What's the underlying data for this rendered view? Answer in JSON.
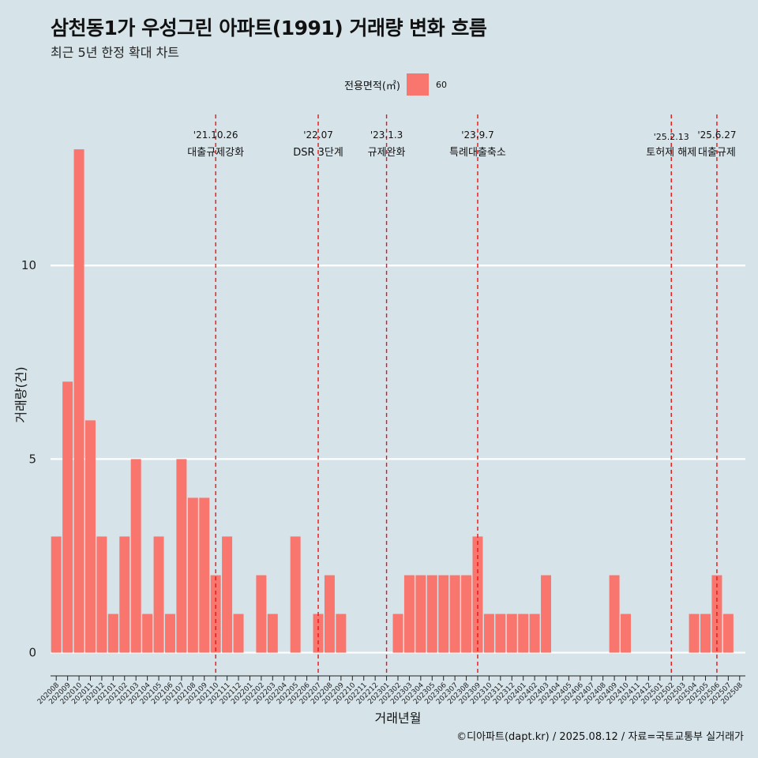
{
  "title": "삼천동1가 우성그린 아파트(1991) 거래량 변화 흐름",
  "subtitle": "최근 5년 한정 확대 차트",
  "caption": "©디아파트(dapt.kr) / 2025.08.12 / 자료=국토교통부 실거래가",
  "legend": {
    "title": "전용면적(㎡)",
    "label": "60",
    "color": "#f8766d"
  },
  "chart_data": {
    "type": "bar",
    "xlabel": "거래년월",
    "ylabel": "거래량(건)",
    "ylim": [
      -0.6,
      13.9
    ],
    "yticks": [
      0,
      5,
      10
    ],
    "grid": true,
    "legend_position": "top",
    "categories": [
      "202008",
      "202009",
      "202010",
      "202011",
      "202012",
      "202101",
      "202102",
      "202103",
      "202104",
      "202105",
      "202106",
      "202107",
      "202108",
      "202109",
      "202110",
      "202111",
      "202112",
      "202201",
      "202202",
      "202203",
      "202204",
      "202205",
      "202206",
      "202207",
      "202208",
      "202209",
      "202210",
      "202211",
      "202212",
      "202301",
      "202302",
      "202303",
      "202304",
      "202305",
      "202306",
      "202307",
      "202308",
      "202309",
      "202310",
      "202311",
      "202312",
      "202401",
      "202402",
      "202403",
      "202404",
      "202405",
      "202406",
      "202407",
      "202408",
      "202409",
      "202410",
      "202411",
      "202412",
      "202501",
      "202502",
      "202503",
      "202504",
      "202505",
      "202506",
      "202507",
      "202508"
    ],
    "series": [
      {
        "name": "60",
        "values": [
          3,
          7,
          13,
          6,
          3,
          1,
          3,
          5,
          1,
          3,
          1,
          5,
          4,
          4,
          2,
          3,
          1,
          0,
          2,
          1,
          0,
          3,
          0,
          1,
          2,
          1,
          0,
          0,
          0,
          0,
          1,
          2,
          2,
          2,
          2,
          2,
          2,
          3,
          1,
          1,
          1,
          1,
          1,
          2,
          0,
          0,
          0,
          0,
          0,
          2,
          1,
          0,
          0,
          0,
          0,
          0,
          1,
          1,
          2,
          1,
          0
        ]
      }
    ],
    "annotations": [
      {
        "category": "202110",
        "date": "'21.10.26",
        "label": "대출규제강화"
      },
      {
        "category": "202207",
        "date": "'22.07",
        "label": "DSR 3단계"
      },
      {
        "category": "202301",
        "date": "'23.1.3",
        "label": "규제완화"
      },
      {
        "category": "202309",
        "date": "'23.9.7",
        "label": "특례대출축소"
      },
      {
        "category": "202502",
        "date": "'25.2.13",
        "label": "토허제 해제"
      },
      {
        "category": "202506",
        "date": "'25.6.27",
        "label": "대출규제"
      }
    ]
  }
}
